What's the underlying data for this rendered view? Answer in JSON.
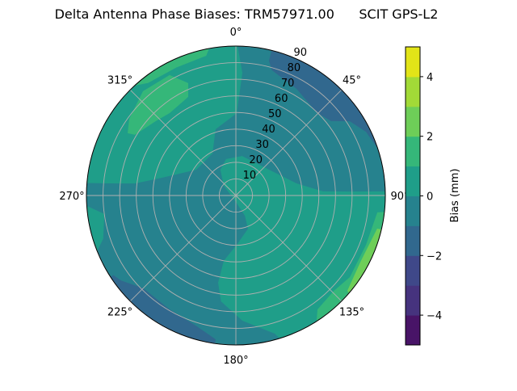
{
  "chart_data": {
    "type": "polar-contour",
    "title": "Delta Antenna Phase Biases: TRM57971.00      SCIT GPS-L2",
    "angular_axis": {
      "direction": "clockwise",
      "zero": "top",
      "ticks": [
        0,
        45,
        90,
        135,
        180,
        225,
        270,
        315
      ],
      "tick_labels": [
        "0°",
        "45°",
        "90°",
        "135°",
        "180°",
        "225°",
        "270°",
        "315°"
      ]
    },
    "radial_axis": {
      "range": [
        0,
        90
      ],
      "ticks": [
        10,
        20,
        30,
        40,
        50,
        60,
        70,
        80,
        90
      ],
      "tick_labels": [
        "10",
        "20",
        "30",
        "40",
        "50",
        "60",
        "70",
        "80",
        "90"
      ],
      "label_angle": 22.5
    },
    "grid": true,
    "colorbar": {
      "label": "Bias (mm)",
      "levels": [
        -5,
        -4,
        -3,
        -2,
        -1,
        0,
        1,
        2,
        3,
        4,
        5
      ],
      "colors": [
        "#481467",
        "#46337e",
        "#3f4889",
        "#31688e",
        "#26828e",
        "#1f9e89",
        "#35b779",
        "#6ece58",
        "#a2da37",
        "#e2e418"
      ],
      "ticks": [
        -4,
        -2,
        0,
        2,
        4
      ],
      "tick_labels": [
        "−4",
        "−2",
        "0",
        "2",
        "4"
      ],
      "colormap": "viridis"
    },
    "background_band": [
      -1,
      0
    ],
    "regions": [
      {
        "band": [
          0,
          1
        ],
        "points_az_zen": [
          [
            274.6,
            90
          ],
          [
            275.4,
            77.7
          ],
          [
            276.8,
            61.2
          ],
          [
            283.4,
            46
          ],
          [
            303,
            28.5
          ],
          [
            331,
            29
          ],
          [
            343,
            41.7
          ],
          [
            0.6,
            49.6
          ],
          [
            3,
            74
          ],
          [
            0,
            90
          ],
          [
            350,
            90
          ],
          [
            330,
            90
          ],
          [
            310,
            90
          ],
          [
            290,
            90
          ]
        ]
      },
      {
        "band": [
          0,
          1
        ],
        "points_az_zen": [
          [
            329,
            18.1
          ],
          [
            345,
            22.7
          ],
          [
            9,
            24.1
          ],
          [
            52,
            25.3
          ],
          [
            78.7,
            37.2
          ],
          [
            87.3,
            52.6
          ],
          [
            88,
            68.6
          ],
          [
            88.5,
            90
          ],
          [
            100,
            90
          ],
          [
            120,
            90
          ],
          [
            140,
            90
          ],
          [
            161,
            90
          ],
          [
            164.3,
            86.4
          ],
          [
            177,
            75.5
          ],
          [
            188,
            64.4
          ],
          [
            191.5,
            53.6
          ],
          [
            190.5,
            40
          ],
          [
            179,
            29.7
          ],
          [
            160,
            21.3
          ],
          [
            156,
            13.3
          ],
          [
            180,
            3.9
          ],
          [
            309,
            9.3
          ]
        ]
      },
      {
        "band": [
          0,
          1
        ],
        "points_az_zen": [
          [
            268,
            90
          ],
          [
            262,
            80
          ],
          [
            252,
            84
          ],
          [
            245,
            90
          ],
          [
            256,
            90
          ]
        ]
      },
      {
        "band": [
          -2,
          -1
        ],
        "points_az_zen": [
          [
            13.8,
            83.6
          ],
          [
            16,
            78.5
          ],
          [
            29.6,
            73.9
          ],
          [
            44.7,
            69.8
          ],
          [
            52,
            72.8
          ],
          [
            56.9,
            81.9
          ],
          [
            63.9,
            87.2
          ],
          [
            71.4,
            89.9
          ],
          [
            71.4,
            90
          ],
          [
            60,
            90
          ],
          [
            45,
            90
          ],
          [
            30,
            90
          ],
          [
            13.8,
            90
          ]
        ]
      },
      {
        "band": [
          -2,
          -1
        ],
        "points_az_zen": [
          [
            237,
            88
          ],
          [
            233.5,
            86
          ],
          [
            225,
            79
          ],
          [
            210,
            79.4
          ],
          [
            197,
            82
          ],
          [
            188,
            87.5
          ],
          [
            188,
            90
          ],
          [
            200,
            90
          ],
          [
            215,
            90
          ],
          [
            230,
            90
          ],
          [
            237,
            90
          ]
        ]
      },
      {
        "band": [
          1,
          2
        ],
        "points_az_zen": [
          [
            299.9,
            75.2
          ],
          [
            305.7,
            79.1
          ],
          [
            318.3,
            84.1
          ],
          [
            331.2,
            82.8
          ],
          [
            337,
            73.5
          ],
          [
            334.2,
            66
          ],
          [
            321.2,
            63.7
          ],
          [
            312.9,
            65.8
          ],
          [
            301,
            70.9
          ]
        ]
      },
      {
        "band": [
          1,
          2
        ],
        "points_az_zen": [
          [
            312,
            90
          ],
          [
            320,
            90
          ],
          [
            330,
            90
          ],
          [
            340,
            90
          ],
          [
            352,
            90
          ],
          [
            348,
            86
          ],
          [
            335,
            85
          ],
          [
            322,
            86
          ]
        ]
      },
      {
        "band": [
          1,
          2
        ],
        "points_az_zen": [
          [
            144.4,
            84.4
          ],
          [
            134.3,
            82.3
          ],
          [
            125.6,
            84.4
          ],
          [
            110.8,
            83.8
          ],
          [
            96.8,
            85.8
          ],
          [
            95.7,
            90
          ],
          [
            110,
            90
          ],
          [
            125,
            90
          ],
          [
            140,
            90
          ],
          [
            150,
            90
          ]
        ]
      },
      {
        "band": [
          2,
          3
        ],
        "points_az_zen": [
          [
            130.5,
            88.3
          ],
          [
            117.6,
            85
          ],
          [
            103.2,
            87.4
          ],
          [
            103,
            90
          ],
          [
            115,
            90
          ],
          [
            125,
            90
          ],
          [
            132,
            90
          ]
        ]
      }
    ]
  }
}
